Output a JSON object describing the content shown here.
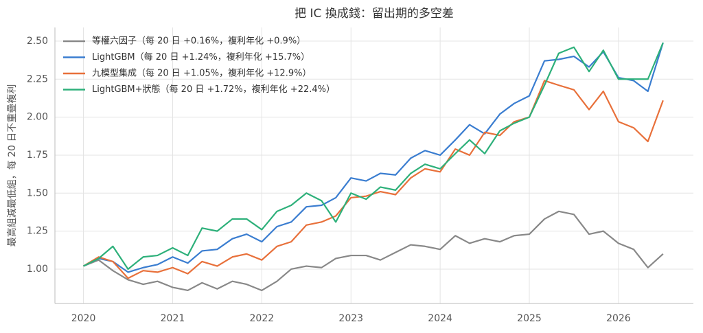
{
  "chart_data": {
    "type": "line",
    "title": "把 IC 換成錢：留出期的多空差",
    "y_label": "最高組減最低組，每 20 日不重疊複利",
    "x": [
      2020,
      2020.17,
      2020.33,
      2020.5,
      2020.67,
      2020.83,
      2021,
      2021.17,
      2021.33,
      2021.5,
      2021.67,
      2021.83,
      2022,
      2022.17,
      2022.33,
      2022.5,
      2022.67,
      2022.83,
      2023,
      2023.17,
      2023.33,
      2023.5,
      2023.67,
      2023.83,
      2024,
      2024.17,
      2024.33,
      2024.5,
      2024.67,
      2024.83,
      2025,
      2025.17,
      2025.33,
      2025.5,
      2025.67,
      2025.83,
      2026,
      2026.17,
      2026.33,
      2026.5
    ],
    "series": [
      {
        "name": "等權六因子（每 20 日 +0.16%，複利年化 +0.9%）",
        "color": "#888888",
        "values": [
          1.02,
          1.06,
          0.99,
          0.93,
          0.9,
          0.92,
          0.88,
          0.86,
          0.91,
          0.87,
          0.92,
          0.9,
          0.86,
          0.92,
          1.0,
          1.02,
          1.01,
          1.07,
          1.09,
          1.09,
          1.06,
          1.11,
          1.16,
          1.15,
          1.13,
          1.22,
          1.17,
          1.2,
          1.18,
          1.22,
          1.23,
          1.33,
          1.38,
          1.36,
          1.23,
          1.25,
          1.17,
          1.13,
          1.01,
          1.1
        ]
      },
      {
        "name": "LightGBM（每 20 日 +1.24%，複利年化 +15.7%）",
        "color": "#3a7dd0",
        "values": [
          1.02,
          1.07,
          1.05,
          0.98,
          1.01,
          1.03,
          1.08,
          1.04,
          1.12,
          1.13,
          1.2,
          1.23,
          1.18,
          1.28,
          1.31,
          1.41,
          1.42,
          1.47,
          1.6,
          1.58,
          1.63,
          1.62,
          1.73,
          1.78,
          1.75,
          1.85,
          1.95,
          1.89,
          2.02,
          2.09,
          2.14,
          2.37,
          2.38,
          2.4,
          2.33,
          2.43,
          2.26,
          2.24,
          2.17,
          2.49
        ]
      },
      {
        "name": "九模型集成（每 20 日 +1.05%，複利年化 +12.9%）",
        "color": "#e8703a",
        "values": [
          1.02,
          1.08,
          1.05,
          0.94,
          0.99,
          0.98,
          1.01,
          0.97,
          1.05,
          1.02,
          1.08,
          1.1,
          1.06,
          1.15,
          1.18,
          1.29,
          1.31,
          1.35,
          1.47,
          1.48,
          1.51,
          1.49,
          1.6,
          1.66,
          1.64,
          1.79,
          1.75,
          1.9,
          1.88,
          1.97,
          2.0,
          2.24,
          2.21,
          2.18,
          2.05,
          2.17,
          1.97,
          1.93,
          1.84,
          2.11
        ]
      },
      {
        "name": "LightGBM+狀態（每 20 日 +1.72%，複利年化 +22.4%）",
        "color": "#2db07a",
        "values": [
          1.02,
          1.07,
          1.15,
          1.0,
          1.08,
          1.09,
          1.14,
          1.09,
          1.27,
          1.25,
          1.33,
          1.33,
          1.26,
          1.38,
          1.42,
          1.5,
          1.45,
          1.31,
          1.5,
          1.46,
          1.54,
          1.52,
          1.63,
          1.69,
          1.66,
          1.76,
          1.85,
          1.76,
          1.91,
          1.96,
          2.0,
          2.21,
          2.42,
          2.46,
          2.3,
          2.44,
          2.25,
          2.25,
          2.25,
          2.49
        ]
      }
    ],
    "xlim": [
      2019.68,
      2026.84
    ],
    "xticks": [
      2020,
      2021,
      2022,
      2023,
      2024,
      2025,
      2026
    ],
    "ylim": [
      0.774,
      2.59
    ],
    "yticks": [
      {
        "value": 1,
        "label": "1.00"
      },
      {
        "value": 1.25,
        "label": "1.25"
      },
      {
        "value": 1.5,
        "label": "1.50"
      },
      {
        "value": 1.75,
        "label": "1.75"
      },
      {
        "value": 2,
        "label": "2.00"
      },
      {
        "value": 2.25,
        "label": "2.25"
      },
      {
        "value": 2.5,
        "label": "2.50"
      }
    ],
    "grid": true,
    "legend": "upper left"
  }
}
